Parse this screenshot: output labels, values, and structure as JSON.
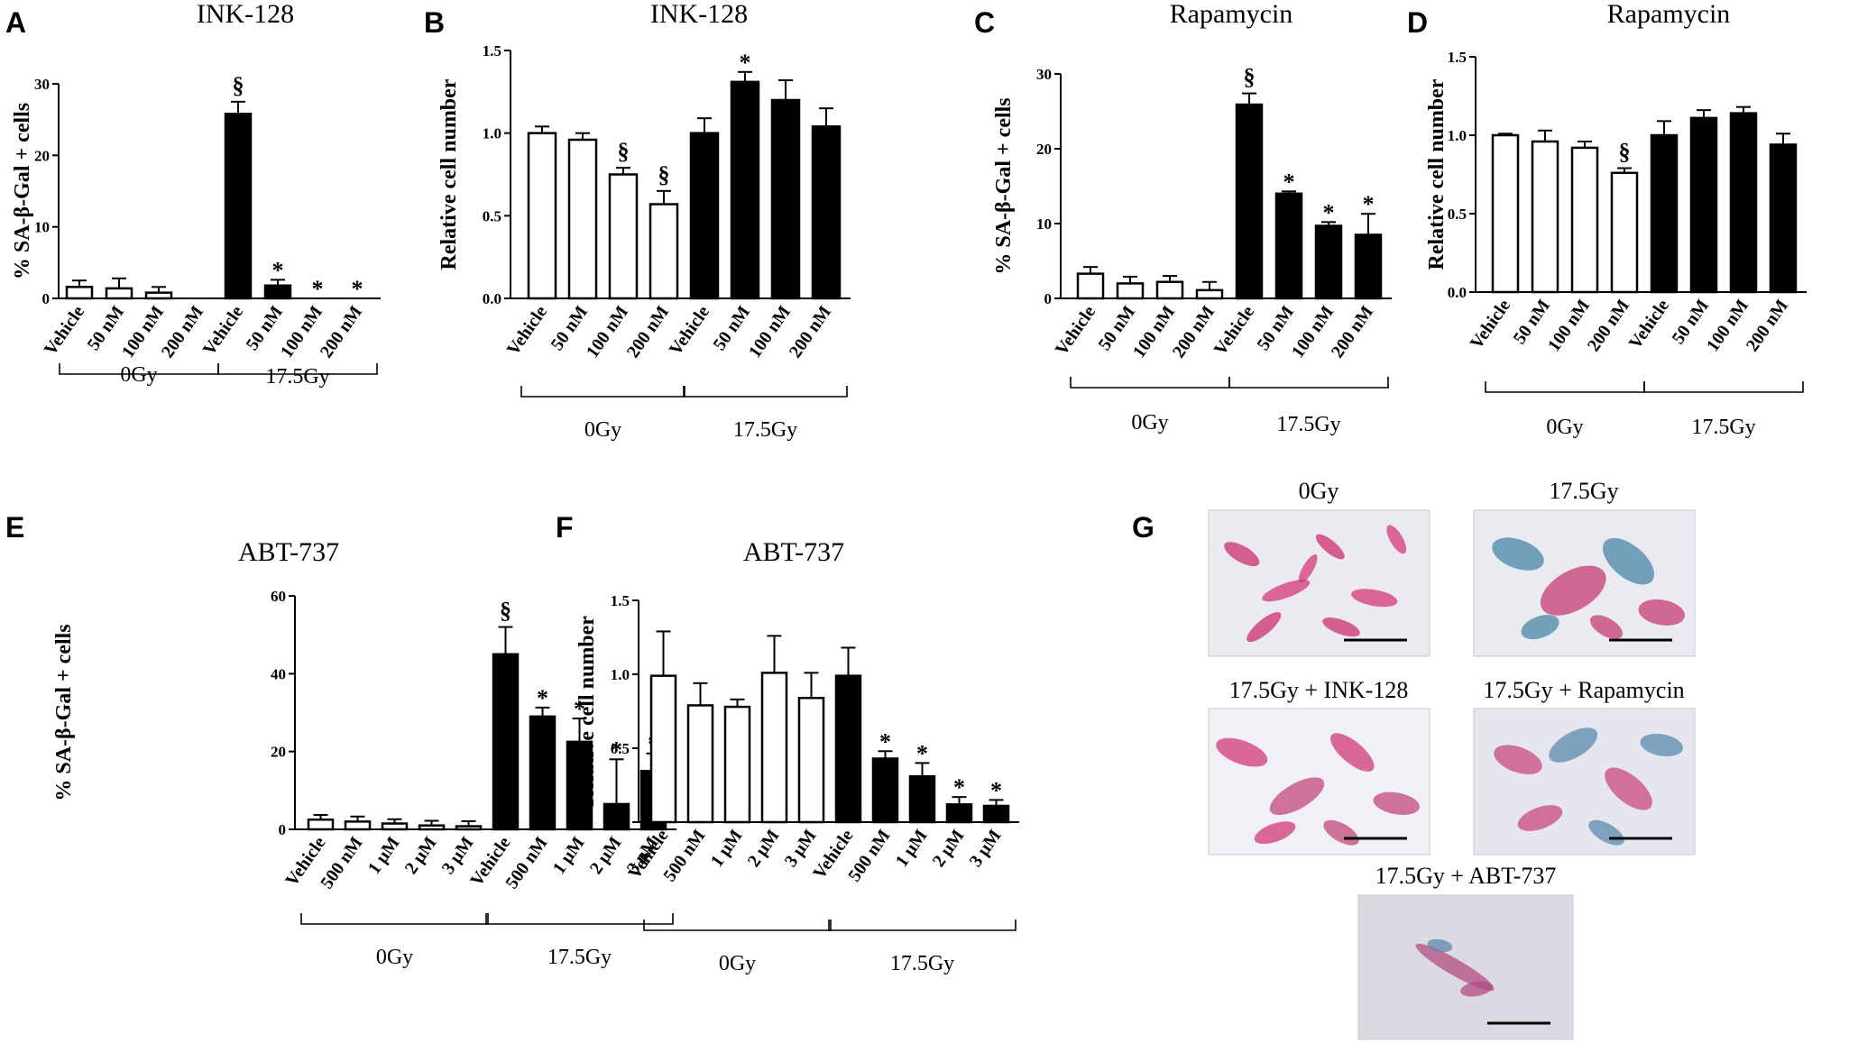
{
  "panel_letters": [
    "A",
    "B",
    "C",
    "D",
    "E",
    "F",
    "G"
  ],
  "chart_data": [
    {
      "panel": "A",
      "type": "bar",
      "title": "INK-128",
      "ylabel": "% SA-β-Gal + cells",
      "ylim": [
        0,
        30
      ],
      "yticks": [
        "0",
        "10",
        "20",
        "30"
      ],
      "categories": [
        "Vehicle",
        "50 nM",
        "100 nM",
        "200 nM",
        "Vehicle",
        "50 nM",
        "100 nM",
        "200 nM"
      ],
      "groups": [
        {
          "label": "0Gy",
          "from": 0,
          "to": 3
        },
        {
          "label": "17.5Gy",
          "from": 4,
          "to": 7
        }
      ],
      "series": [
        {
          "values": [
            1.6,
            1.4,
            0.8,
            0,
            25.8,
            1.8,
            0,
            0
          ],
          "errors": [
            0.9,
            1.4,
            0.8,
            0,
            1.7,
            0.8,
            0,
            0
          ],
          "fill": [
            "#ffffff",
            "#ffffff",
            "#ffffff",
            "#ffffff",
            "#000000",
            "#000000",
            "#000000",
            "#000000"
          ]
        }
      ],
      "annotations": [
        "",
        "",
        "",
        "",
        "§",
        "*",
        "*",
        "*"
      ]
    },
    {
      "panel": "B",
      "type": "bar",
      "title": "INK-128",
      "ylabel": "Relative cell number",
      "ylim": [
        0,
        1.5
      ],
      "yticks": [
        "0.0",
        "0.5",
        "1.0",
        "1.5"
      ],
      "categories": [
        "Vehicle",
        "50 nM",
        "100 nM",
        "200 nM",
        "Vehicle",
        "50 nM",
        "100 nM",
        "200 nM"
      ],
      "groups": [
        {
          "label": "0Gy",
          "from": 0,
          "to": 3
        },
        {
          "label": "17.5Gy",
          "from": 4,
          "to": 7
        }
      ],
      "series": [
        {
          "values": [
            1.0,
            0.96,
            0.75,
            0.57,
            1.0,
            1.31,
            1.2,
            1.04
          ],
          "errors": [
            0.04,
            0.04,
            0.04,
            0.08,
            0.09,
            0.06,
            0.12,
            0.11
          ],
          "fill": [
            "#ffffff",
            "#ffffff",
            "#ffffff",
            "#ffffff",
            "#000000",
            "#000000",
            "#000000",
            "#000000"
          ]
        }
      ],
      "annotations": [
        "",
        "",
        "§",
        "§",
        "",
        "*",
        "",
        ""
      ]
    },
    {
      "panel": "C",
      "type": "bar",
      "title": "Rapamycin",
      "ylabel": "% SA-β-Gal + cells",
      "ylim": [
        0,
        30
      ],
      "yticks": [
        "0",
        "10",
        "20",
        "30"
      ],
      "categories": [
        "Vehicle",
        "50 nM",
        "100 nM",
        "200 nM",
        "Vehicle",
        "50 nM",
        "100 nM",
        "200 nM"
      ],
      "groups": [
        {
          "label": "0Gy",
          "from": 0,
          "to": 3
        },
        {
          "label": "17.5Gy",
          "from": 4,
          "to": 7
        }
      ],
      "series": [
        {
          "values": [
            3.3,
            2.0,
            2.2,
            1.1,
            25.9,
            14.0,
            9.7,
            8.5
          ],
          "errors": [
            0.9,
            0.9,
            0.8,
            1.1,
            1.5,
            0.3,
            0.5,
            2.8
          ],
          "fill": [
            "#ffffff",
            "#ffffff",
            "#ffffff",
            "#ffffff",
            "#000000",
            "#000000",
            "#000000",
            "#000000"
          ]
        }
      ],
      "annotations": [
        "",
        "",
        "",
        "",
        "§",
        "*",
        "*",
        "*"
      ]
    },
    {
      "panel": "D",
      "type": "bar",
      "title": "Rapamycin",
      "ylabel": "Relative cell number",
      "ylim": [
        0,
        1.5
      ],
      "yticks": [
        "0.0",
        "0.5",
        "1.0",
        "1.5"
      ],
      "categories": [
        "Vehicle",
        "50 nM",
        "100 nM",
        "200 nM",
        "Vehicle",
        "50 nM",
        "100 nM",
        "200 nM"
      ],
      "groups": [
        {
          "label": "0Gy",
          "from": 0,
          "to": 3
        },
        {
          "label": "17.5Gy",
          "from": 4,
          "to": 7
        }
      ],
      "series": [
        {
          "values": [
            1.0,
            0.96,
            0.92,
            0.76,
            1.0,
            1.11,
            1.14,
            0.94
          ],
          "errors": [
            0.01,
            0.07,
            0.04,
            0.03,
            0.09,
            0.05,
            0.04,
            0.07
          ],
          "fill": [
            "#ffffff",
            "#ffffff",
            "#ffffff",
            "#ffffff",
            "#000000",
            "#000000",
            "#000000",
            "#000000"
          ]
        }
      ],
      "annotations": [
        "",
        "",
        "",
        "§",
        "",
        "",
        "",
        ""
      ]
    },
    {
      "panel": "E",
      "type": "bar",
      "title": "ABT-737",
      "ylabel": "% SA-β-Gal + cells",
      "ylim": [
        0,
        60
      ],
      "yticks": [
        "0",
        "20",
        "40",
        "60"
      ],
      "categories": [
        "Vehicle",
        "500 nM",
        "1 μM",
        "2 μM",
        "3 μM",
        "Vehicle",
        "500 nM",
        "1 μM",
        "2 μM",
        "3 μM"
      ],
      "groups": [
        {
          "label": "0Gy",
          "from": 0,
          "to": 4
        },
        {
          "label": "17.5Gy",
          "from": 5,
          "to": 9
        }
      ],
      "series": [
        {
          "values": [
            2.5,
            2.0,
            1.5,
            1.0,
            0.8,
            45.0,
            29.0,
            22.5,
            6.5,
            15.0
          ],
          "errors": [
            1.2,
            1.3,
            1.1,
            1.2,
            1.3,
            7.0,
            2.3,
            6.0,
            11.5,
            4.5
          ],
          "fill": [
            "#ffffff",
            "#ffffff",
            "#ffffff",
            "#ffffff",
            "#ffffff",
            "#000000",
            "#000000",
            "#000000",
            "#000000",
            "#000000"
          ]
        }
      ],
      "annotations": [
        "",
        "",
        "",
        "",
        "",
        "§",
        "*",
        "*",
        "*",
        "*"
      ]
    },
    {
      "panel": "F",
      "type": "bar",
      "title": "ABT-737",
      "ylabel": "Relative cell number",
      "ylim": [
        0,
        1.5
      ],
      "yticks": [
        "0.0",
        "0.5",
        "1.0",
        "1.5"
      ],
      "categories": [
        "Vehicle",
        "500 nM",
        "1 μM",
        "2 μM",
        "3 μM",
        "Vehicle",
        "500 nM",
        "1 μM",
        "2 μM",
        "3 μM"
      ],
      "groups": [
        {
          "label": "0Gy",
          "from": 0,
          "to": 4
        },
        {
          "label": "17.5Gy",
          "from": 5,
          "to": 9
        }
      ],
      "series": [
        {
          "values": [
            0.99,
            0.79,
            0.78,
            1.01,
            0.84,
            0.99,
            0.43,
            0.31,
            0.12,
            0.11
          ],
          "errors": [
            0.3,
            0.15,
            0.05,
            0.25,
            0.17,
            0.19,
            0.05,
            0.09,
            0.05,
            0.04
          ],
          "fill": [
            "#ffffff",
            "#ffffff",
            "#ffffff",
            "#ffffff",
            "#ffffff",
            "#000000",
            "#000000",
            "#000000",
            "#000000",
            "#000000"
          ]
        }
      ],
      "annotations": [
        "",
        "",
        "",
        "",
        "",
        "",
        "*",
        "*",
        "*",
        "*"
      ]
    }
  ],
  "micrographs": [
    {
      "title": "0Gy",
      "base": "#eceaf1",
      "cells": [
        [
          "#cc2f6e",
          0
        ],
        [
          "#d33a78",
          0
        ]
      ]
    },
    {
      "title": "17.5Gy",
      "base": "#e9ebf0",
      "cells": [
        [
          "#4a86a8",
          1
        ],
        [
          "#c53c74",
          0
        ]
      ]
    },
    {
      "title": "17.5Gy + INK-128",
      "base": "#f1f1f5",
      "cells": [
        [
          "#cf3a77",
          0
        ],
        [
          "#c1477e",
          0
        ]
      ]
    },
    {
      "title": "17.5Gy + Rapamycin",
      "base": "#e6e6ee",
      "cells": [
        [
          "#c84a80",
          0
        ],
        [
          "#5b89ad",
          1
        ]
      ]
    },
    {
      "title": "17.5Gy + ABT-737",
      "base": "#ddd9e2",
      "cells": [
        [
          "#b04c82",
          0
        ],
        [
          "#5c87ab",
          1
        ]
      ]
    }
  ]
}
